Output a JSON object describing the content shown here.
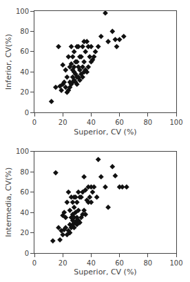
{
  "chart_data": [
    {
      "type": "scatter",
      "x": [
        12,
        15,
        17,
        18,
        19,
        20,
        20,
        21,
        22,
        22,
        23,
        23,
        24,
        24,
        25,
        25,
        25,
        26,
        26,
        26,
        27,
        27,
        27,
        27,
        28,
        28,
        28,
        28,
        29,
        29,
        29,
        30,
        30,
        30,
        30,
        31,
        31,
        31,
        32,
        32,
        32,
        33,
        33,
        34,
        34,
        34,
        35,
        35,
        35,
        36,
        36,
        37,
        37,
        38,
        38,
        39,
        40,
        40,
        41,
        42,
        43,
        45,
        47,
        50,
        52,
        55,
        57,
        58,
        60,
        63
      ],
      "values": [
        11,
        25,
        65,
        26,
        22,
        28,
        47,
        30,
        25,
        42,
        20,
        35,
        22,
        55,
        25,
        30,
        45,
        28,
        48,
        65,
        30,
        35,
        42,
        55,
        32,
        40,
        60,
        45,
        30,
        38,
        50,
        28,
        35,
        50,
        65,
        35,
        45,
        65,
        32,
        42,
        55,
        38,
        55,
        35,
        65,
        45,
        40,
        50,
        70,
        42,
        60,
        40,
        70,
        45,
        65,
        55,
        50,
        65,
        52,
        55,
        60,
        65,
        75,
        98,
        70,
        80,
        72,
        65,
        72,
        75
      ],
      "xlabel": "Superior, CV (%)",
      "ylabel": "Inferior, CV(%)",
      "xlim": [
        0,
        100
      ],
      "ylim": [
        0,
        100
      ],
      "xticks": [
        0,
        20,
        40,
        60,
        80,
        100
      ],
      "yticks": [
        0,
        20,
        40,
        60,
        80,
        100
      ],
      "marker": "diamond",
      "color": "#111111",
      "grid": false
    },
    {
      "type": "scatter",
      "x": [
        13,
        15,
        17,
        18,
        19,
        20,
        20,
        21,
        21,
        22,
        22,
        23,
        23,
        24,
        24,
        25,
        25,
        25,
        26,
        26,
        26,
        27,
        27,
        27,
        27,
        28,
        28,
        28,
        28,
        29,
        29,
        29,
        30,
        30,
        30,
        30,
        31,
        31,
        31,
        32,
        32,
        33,
        33,
        34,
        34,
        35,
        35,
        36,
        36,
        37,
        38,
        38,
        39,
        40,
        40,
        41,
        42,
        44,
        45,
        47,
        50,
        52,
        55,
        57,
        60,
        62,
        65
      ],
      "values": [
        12,
        79,
        25,
        13,
        22,
        18,
        37,
        23,
        40,
        25,
        35,
        18,
        50,
        22,
        60,
        20,
        28,
        42,
        25,
        35,
        55,
        28,
        38,
        50,
        32,
        25,
        35,
        55,
        45,
        30,
        40,
        55,
        28,
        35,
        50,
        32,
        32,
        42,
        60,
        30,
        55,
        35,
        55,
        38,
        60,
        42,
        75,
        38,
        62,
        52,
        50,
        65,
        55,
        50,
        65,
        60,
        65,
        55,
        92,
        75,
        65,
        45,
        85,
        76,
        65,
        65,
        65
      ],
      "xlabel": "Superior, CV (%)",
      "ylabel": "Intermedia, CV(%)",
      "xlim": [
        0,
        100
      ],
      "ylim": [
        0,
        100
      ],
      "xticks": [
        0,
        20,
        40,
        60,
        80,
        100
      ],
      "yticks": [
        0,
        20,
        40,
        60,
        80,
        100
      ],
      "marker": "diamond",
      "color": "#111111",
      "grid": false
    }
  ]
}
